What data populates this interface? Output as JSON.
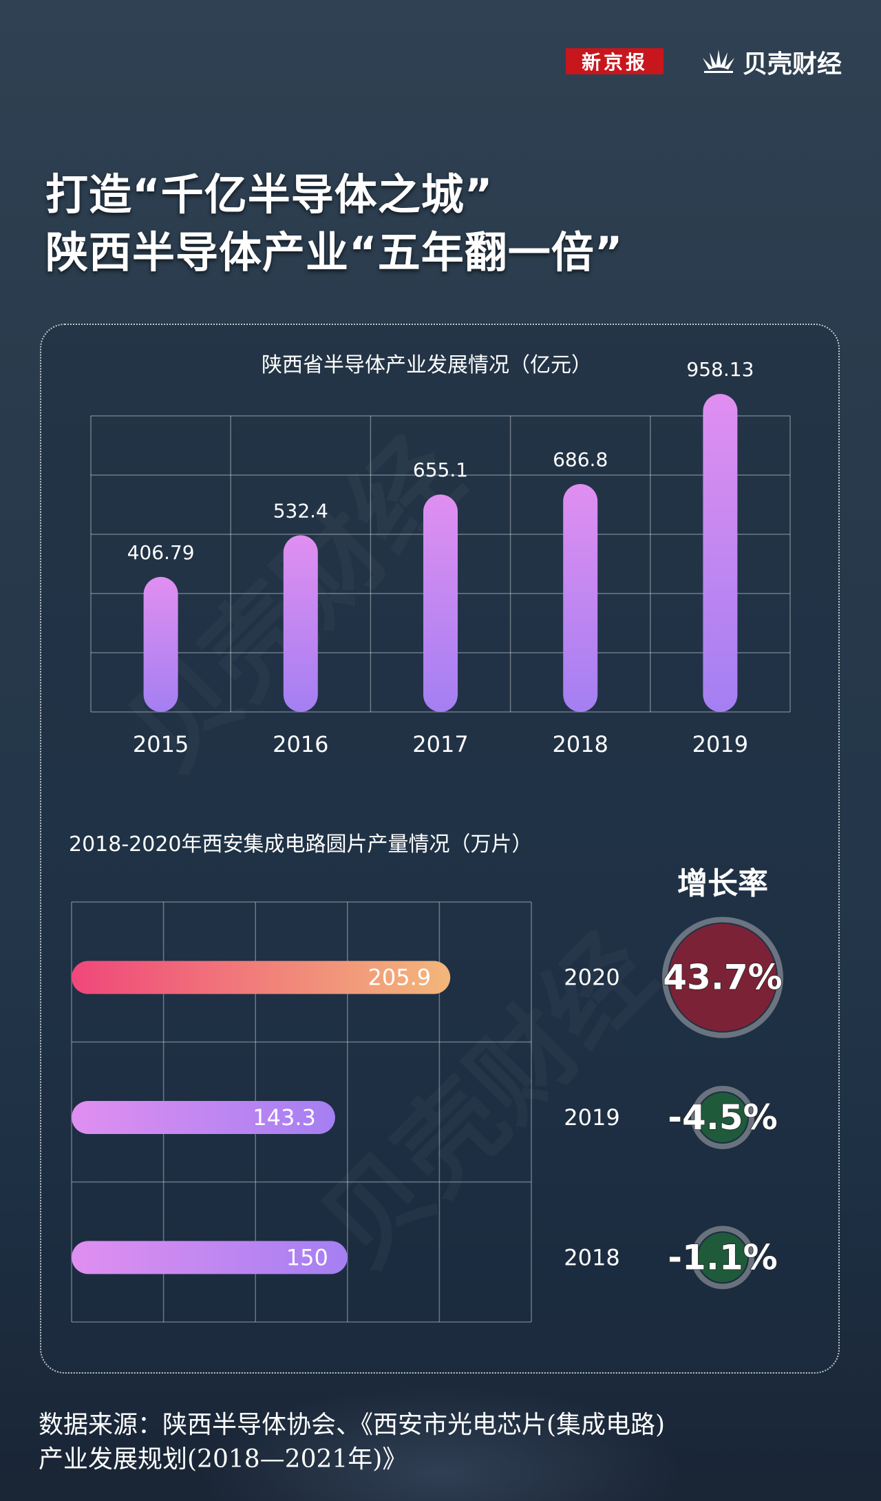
{
  "header": {
    "logo_xinjingbao": "新京报",
    "logo_beike": "贝壳财经"
  },
  "title": {
    "line1": "打造“千亿半导体之城”",
    "line2": "陕西半导体产业“五年翻一倍”"
  },
  "watermark": "贝壳财经",
  "chart_data": [
    {
      "type": "bar",
      "title": "陕西省半导体产业发展情况（亿元）",
      "categories": [
        "2015",
        "2016",
        "2017",
        "2018",
        "2019"
      ],
      "values": [
        406.79,
        532.4,
        655.1,
        686.8,
        958.13
      ],
      "value_labels": [
        "406.79",
        "532.4",
        "655.1",
        "686.8",
        "958.13"
      ],
      "xlabel": "",
      "ylabel": "",
      "ylim": [
        0,
        1000
      ],
      "grid": true,
      "colors": {
        "bar_top": "#e08ff0",
        "bar_bottom": "#a47ff2"
      }
    },
    {
      "type": "bar",
      "orientation": "horizontal",
      "title": "2018-2020年西安集成电路圆片产量情况（万片）",
      "categories": [
        "2020",
        "2019",
        "2018"
      ],
      "values": [
        205.9,
        143.3,
        150
      ],
      "value_labels": [
        "205.9",
        "143.3",
        "150"
      ],
      "xlim": [
        0,
        250
      ],
      "grid": true,
      "growth_header": "增长率",
      "growth_rates": [
        "43.7%",
        "-4.5%",
        "-1.1%"
      ],
      "growth_values": [
        43.7,
        -4.5,
        -1.1
      ],
      "colors": {
        "highlight_start": "#f0477a",
        "highlight_end": "#f2b77a",
        "bar_start": "#e08ff0",
        "bar_end": "#a47ff2",
        "positive_circle": "#7c2236",
        "negative_circle": "#1f5a3a"
      }
    }
  ],
  "footer": {
    "line1": "数据来源：陕西半导体协会、《西安市光电芯片(集成电路)",
    "line2": "产业发展规划(2018—2021年)》"
  }
}
